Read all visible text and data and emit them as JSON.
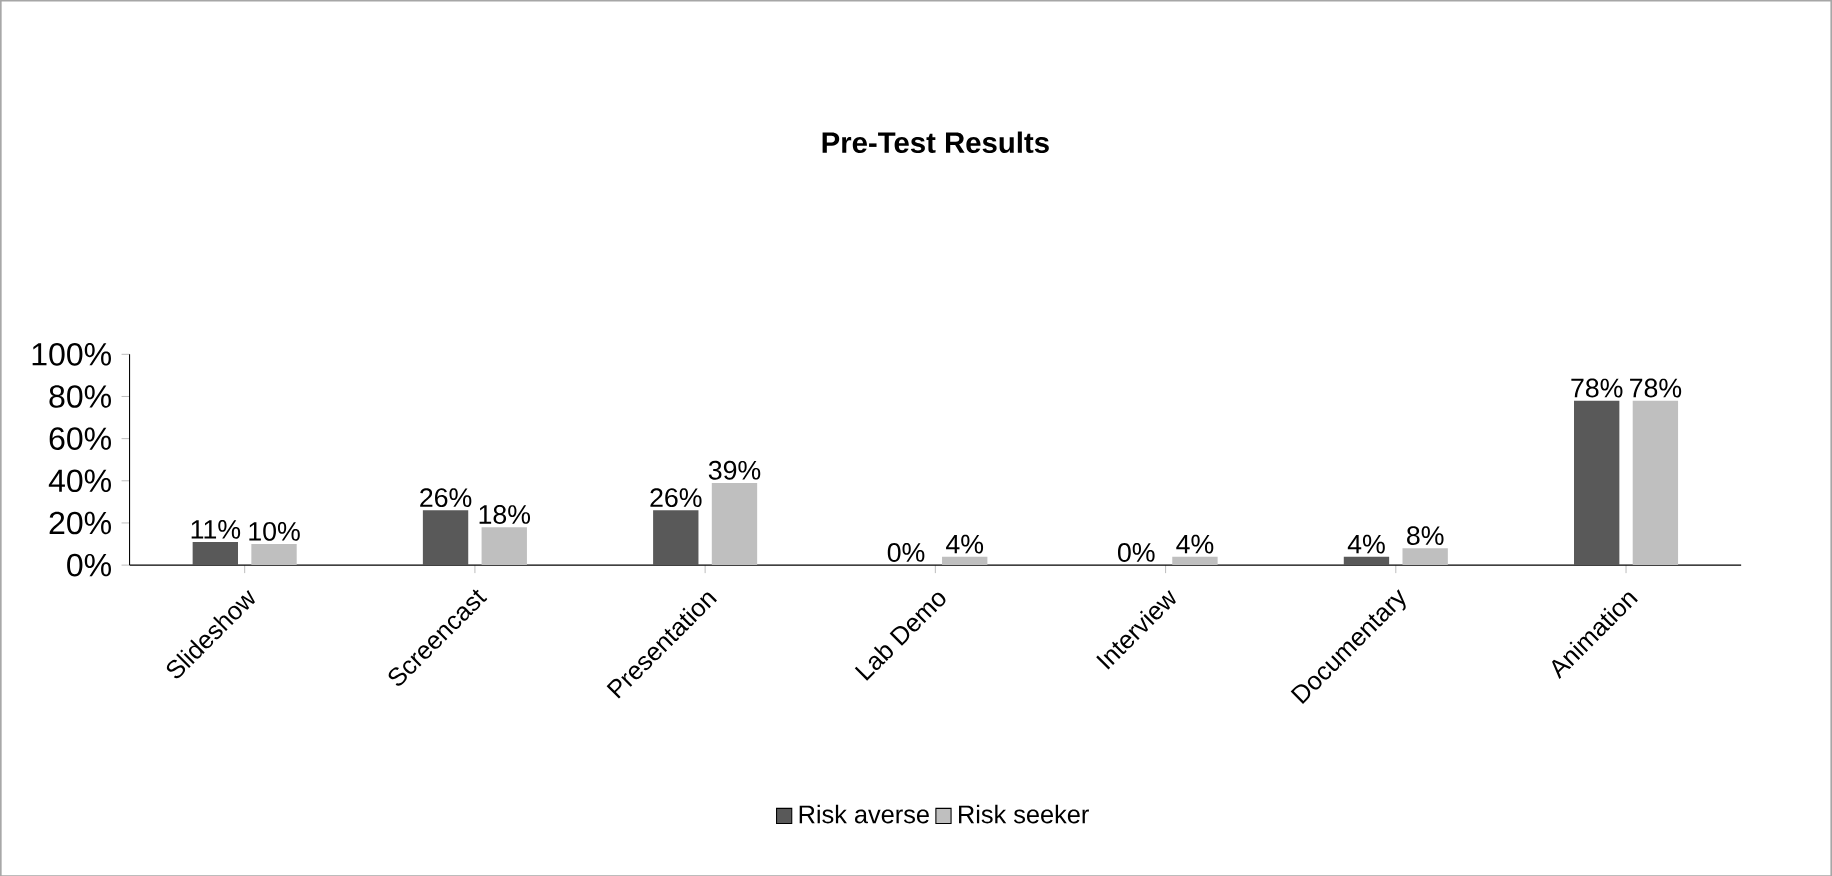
{
  "chart_data": {
    "type": "bar",
    "title": "Pre-Test Results",
    "categories": [
      "Slideshow",
      "Screencast",
      "Presentation",
      "Lab Demo",
      "Interview",
      "Documentary",
      "Animation"
    ],
    "series": [
      {
        "name": "Risk averse",
        "color": "#595959",
        "values": [
          11,
          26,
          26,
          0,
          0,
          4,
          78
        ],
        "value_labels": [
          "11%",
          "26%",
          "26%",
          "0%",
          "0%",
          "4%",
          "78%"
        ]
      },
      {
        "name": "Risk seeker",
        "color": "#bfbfbf",
        "values": [
          10,
          18,
          39,
          4,
          4,
          8,
          78
        ],
        "value_labels": [
          "10%",
          "18%",
          "39%",
          "4%",
          "4%",
          "8%",
          "78%"
        ]
      }
    ],
    "ylim": [
      0,
      100
    ],
    "yticks": [
      {
        "value": 0,
        "label": "0%"
      },
      {
        "value": 20,
        "label": "20%"
      },
      {
        "value": 40,
        "label": "40%"
      },
      {
        "value": 60,
        "label": "60%"
      },
      {
        "value": 80,
        "label": "80%"
      },
      {
        "value": 100,
        "label": "100%"
      }
    ],
    "grid": false,
    "legend": "bottom"
  }
}
